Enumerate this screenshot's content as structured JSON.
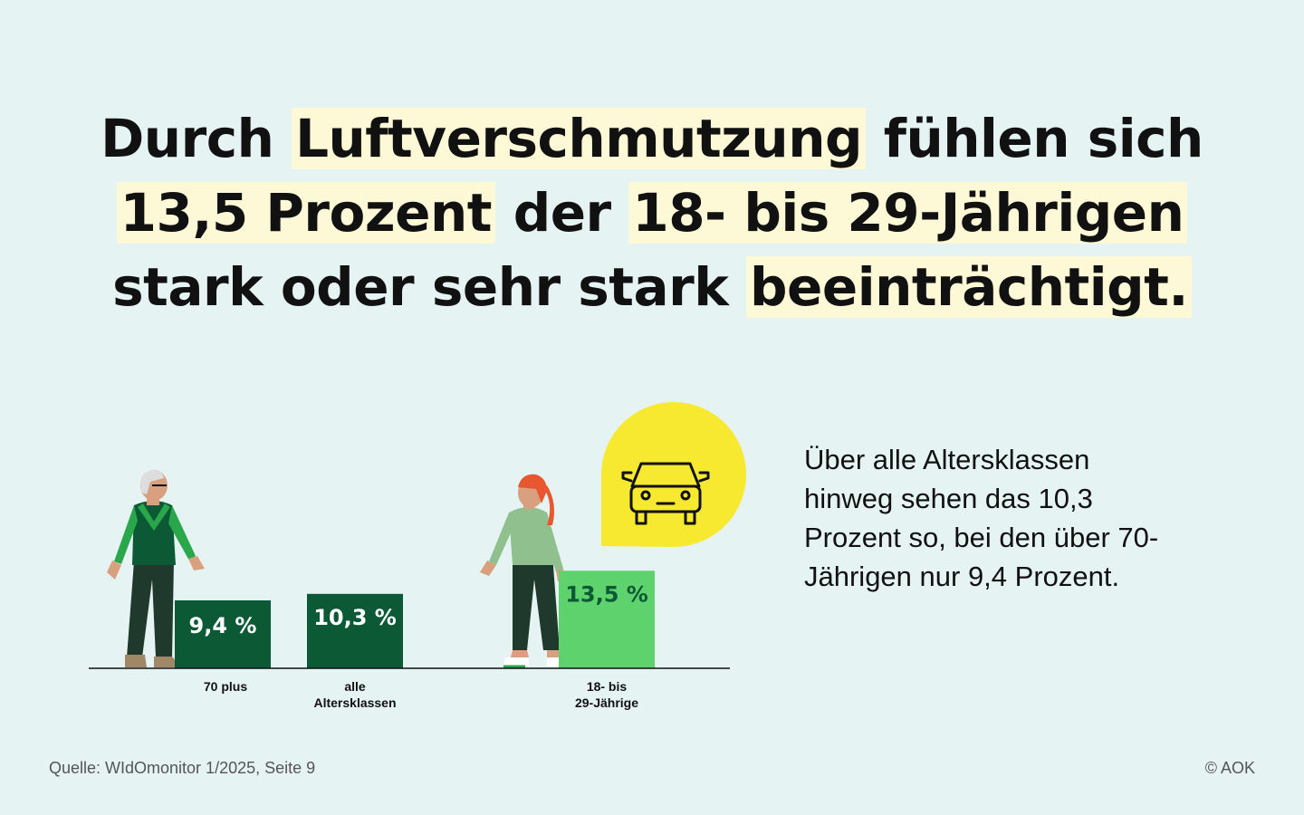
{
  "headline": {
    "line1": {
      "a": "Durch ",
      "b": "Luftverschmutzung",
      "c": " fühlen sich"
    },
    "line2": {
      "a": "13,5 Prozent",
      "b": " der ",
      "c": "18- bis 29-Jährigen"
    },
    "line3": {
      "a": "stark oder sehr stark ",
      "b": "beeinträchtigt."
    }
  },
  "side_text": "Über alle Altersklassen hinweg sehen das 10,3 Prozent so, bei den über 70-Jährigen nur 9,4 Prozent.",
  "footer": {
    "source": "Quelle: WIdOmonitor 1/2025, Seite 9",
    "copyright": "© AOK"
  },
  "icons": {
    "speech_bubble": "car-icon"
  },
  "colors": {
    "background": "#e6f3f3",
    "highlight": "#fdf8d6",
    "dark_green": "#0b5a35",
    "light_green": "#5ed36d",
    "bubble_yellow": "#f7e830"
  },
  "chart_data": {
    "type": "bar",
    "categories": [
      {
        "line1": "70 plus",
        "line2": ""
      },
      {
        "line1": "alle",
        "line2": "Altersklassen"
      },
      {
        "line1": "18- bis",
        "line2": "29-Jährige"
      }
    ],
    "values": [
      9.4,
      10.3,
      13.5
    ],
    "value_labels": [
      "9,4 %",
      "10,3 %",
      "13,5 %"
    ],
    "bar_colors": [
      "#0b5a35",
      "#0b5a35",
      "#5ed36d"
    ],
    "label_colors": [
      "#ffffff",
      "#ffffff",
      "#0b5a35"
    ],
    "unit": "%",
    "title": "",
    "xlabel": "",
    "ylabel": "",
    "grid": false,
    "legend": "none"
  }
}
